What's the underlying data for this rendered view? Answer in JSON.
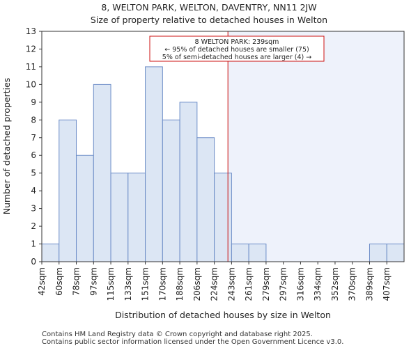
{
  "chart_data": {
    "type": "bar",
    "title": "8, WELTON PARK, WELTON, DAVENTRY, NN11 2JW",
    "subtitle": "Size of property relative to detached houses in Welton",
    "xlabel": "Distribution of detached houses by size in Welton",
    "ylabel": "Number of detached properties",
    "categories": [
      "42sqm",
      "60sqm",
      "78sqm",
      "97sqm",
      "115sqm",
      "133sqm",
      "151sqm",
      "170sqm",
      "188sqm",
      "206sqm",
      "224sqm",
      "243sqm",
      "261sqm",
      "279sqm",
      "297sqm",
      "316sqm",
      "334sqm",
      "352sqm",
      "370sqm",
      "389sqm",
      "407sqm"
    ],
    "values": [
      1,
      8,
      6,
      10,
      5,
      5,
      11,
      8,
      9,
      7,
      5,
      1,
      1,
      0,
      0,
      0,
      0,
      0,
      0,
      1,
      1
    ],
    "ylim": [
      0,
      13
    ],
    "yticks": [
      0,
      1,
      2,
      3,
      4,
      5,
      6,
      7,
      8,
      9,
      10,
      11,
      12,
      13
    ],
    "grid": false,
    "marker": {
      "value_sqm": 239,
      "lines": [
        "8 WELTON PARK: 239sqm",
        "← 95% of detached houses are smaller (75)",
        "5% of semi-detached houses are larger (4) →"
      ]
    },
    "footer": [
      "Contains HM Land Registry data © Crown copyright and database right 2025.",
      "Contains public sector information licensed under the Open Government Licence v3.0."
    ],
    "colors": {
      "bar_fill": "#dce6f4",
      "bar_stroke": "#6b8cc7",
      "marker": "#cc1111",
      "highlight_region": "#eef2fb"
    }
  }
}
